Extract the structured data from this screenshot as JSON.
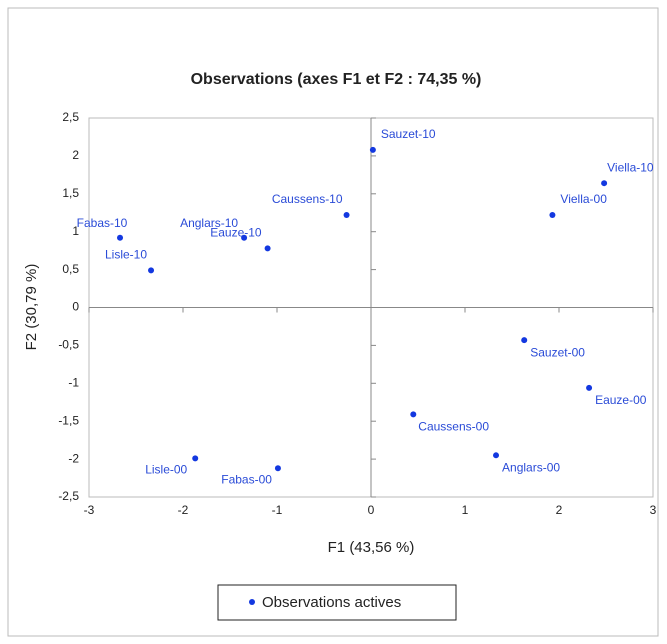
{
  "chart_data": {
    "type": "scatter",
    "title": "Observations (axes F1 et F2 : 74,35 %)",
    "x_label": "F1 (43,56 %)",
    "y_label": "F2 (30,79 %)",
    "series": [
      {
        "name": "Observations actives",
        "color": "#1338e0",
        "labels": [
          "Sauzet-10",
          "Viella-10",
          "Viella-00",
          "Caussens-10",
          "Fabas-10",
          "Anglars-10",
          "Eauze-10",
          "Lisle-10",
          "Sauzet-00",
          "Eauze-00",
          "Caussens-00",
          "Anglars-00",
          "Lisle-00",
          "Fabas-00"
        ],
        "x": [
          0.02,
          2.48,
          1.93,
          -0.26,
          -2.67,
          -1.35,
          -1.1,
          -2.34,
          1.63,
          2.32,
          0.45,
          1.33,
          -1.87,
          -0.99
        ],
        "values": [
          2.08,
          1.64,
          1.22,
          1.22,
          0.92,
          0.92,
          0.78,
          0.49,
          -0.43,
          -1.06,
          -1.41,
          -1.95,
          -1.99,
          -2.12
        ]
      }
    ],
    "xlim": [
      -3,
      3
    ],
    "xticks": [
      -3,
      -2,
      -1,
      0,
      1,
      2,
      3
    ],
    "ylim": [
      -2.5,
      2.5
    ],
    "yticks": [
      {
        "value": -2.5,
        "label": "-2,5"
      },
      -2,
      {
        "value": -1.5,
        "label": "-1,5"
      },
      -1,
      {
        "value": -0.5,
        "label": "-0,5"
      },
      0,
      {
        "value": 0.5,
        "label": "0,5"
      },
      1,
      {
        "value": 1.5,
        "label": "1,5"
      },
      2,
      {
        "value": 2.5,
        "label": "2,5"
      }
    ],
    "legend": "bottom"
  }
}
